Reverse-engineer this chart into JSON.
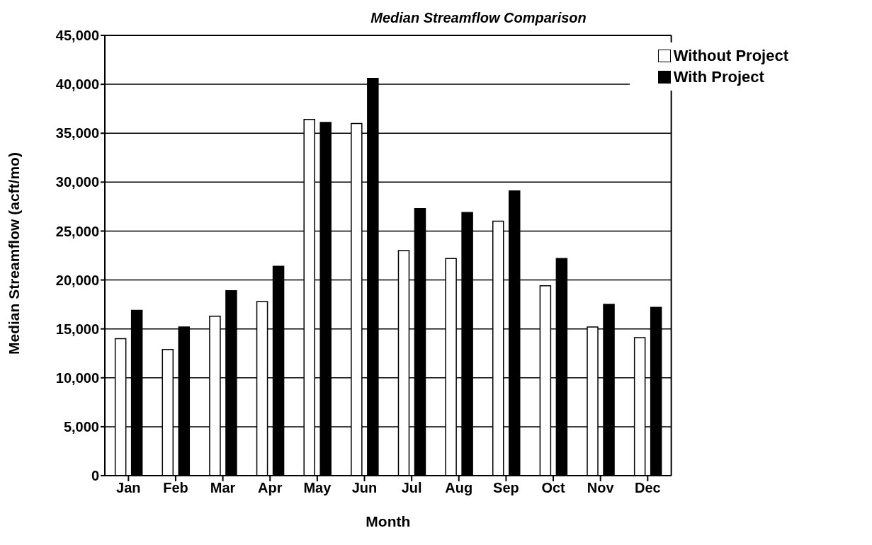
{
  "chart_data": {
    "type": "bar",
    "title": "Median Streamflow Comparison",
    "xlabel": "Month",
    "ylabel": "Median Streamflow (acft/mo)",
    "categories": [
      "Jan",
      "Feb",
      "Mar",
      "Apr",
      "May",
      "Jun",
      "Jul",
      "Aug",
      "Sep",
      "Oct",
      "Nov",
      "Dec"
    ],
    "series": [
      {
        "name": "Without Project",
        "color": "#ffffff",
        "values": [
          14000,
          12900,
          16300,
          17800,
          36400,
          36000,
          23000,
          22200,
          26000,
          19400,
          15200,
          14100
        ]
      },
      {
        "name": "With Project",
        "color": "#000000",
        "values": [
          16900,
          15200,
          18900,
          21400,
          36100,
          40600,
          27300,
          26900,
          29100,
          22200,
          17500,
          17200
        ]
      }
    ],
    "ylim": [
      0,
      45000
    ],
    "yticks": [
      {
        "value": 0,
        "label": "0"
      },
      {
        "value": 5000,
        "label": "5,000"
      },
      {
        "value": 10000,
        "label": "10,000"
      },
      {
        "value": 15000,
        "label": "15,000"
      },
      {
        "value": 20000,
        "label": "20,000"
      },
      {
        "value": 25000,
        "label": "25,000"
      },
      {
        "value": 30000,
        "label": "30,000"
      },
      {
        "value": 35000,
        "label": "35,000"
      },
      {
        "value": 40000,
        "label": "40,000"
      },
      {
        "value": 45000,
        "label": "45,000"
      }
    ],
    "grid": "y",
    "legend": "top right"
  }
}
